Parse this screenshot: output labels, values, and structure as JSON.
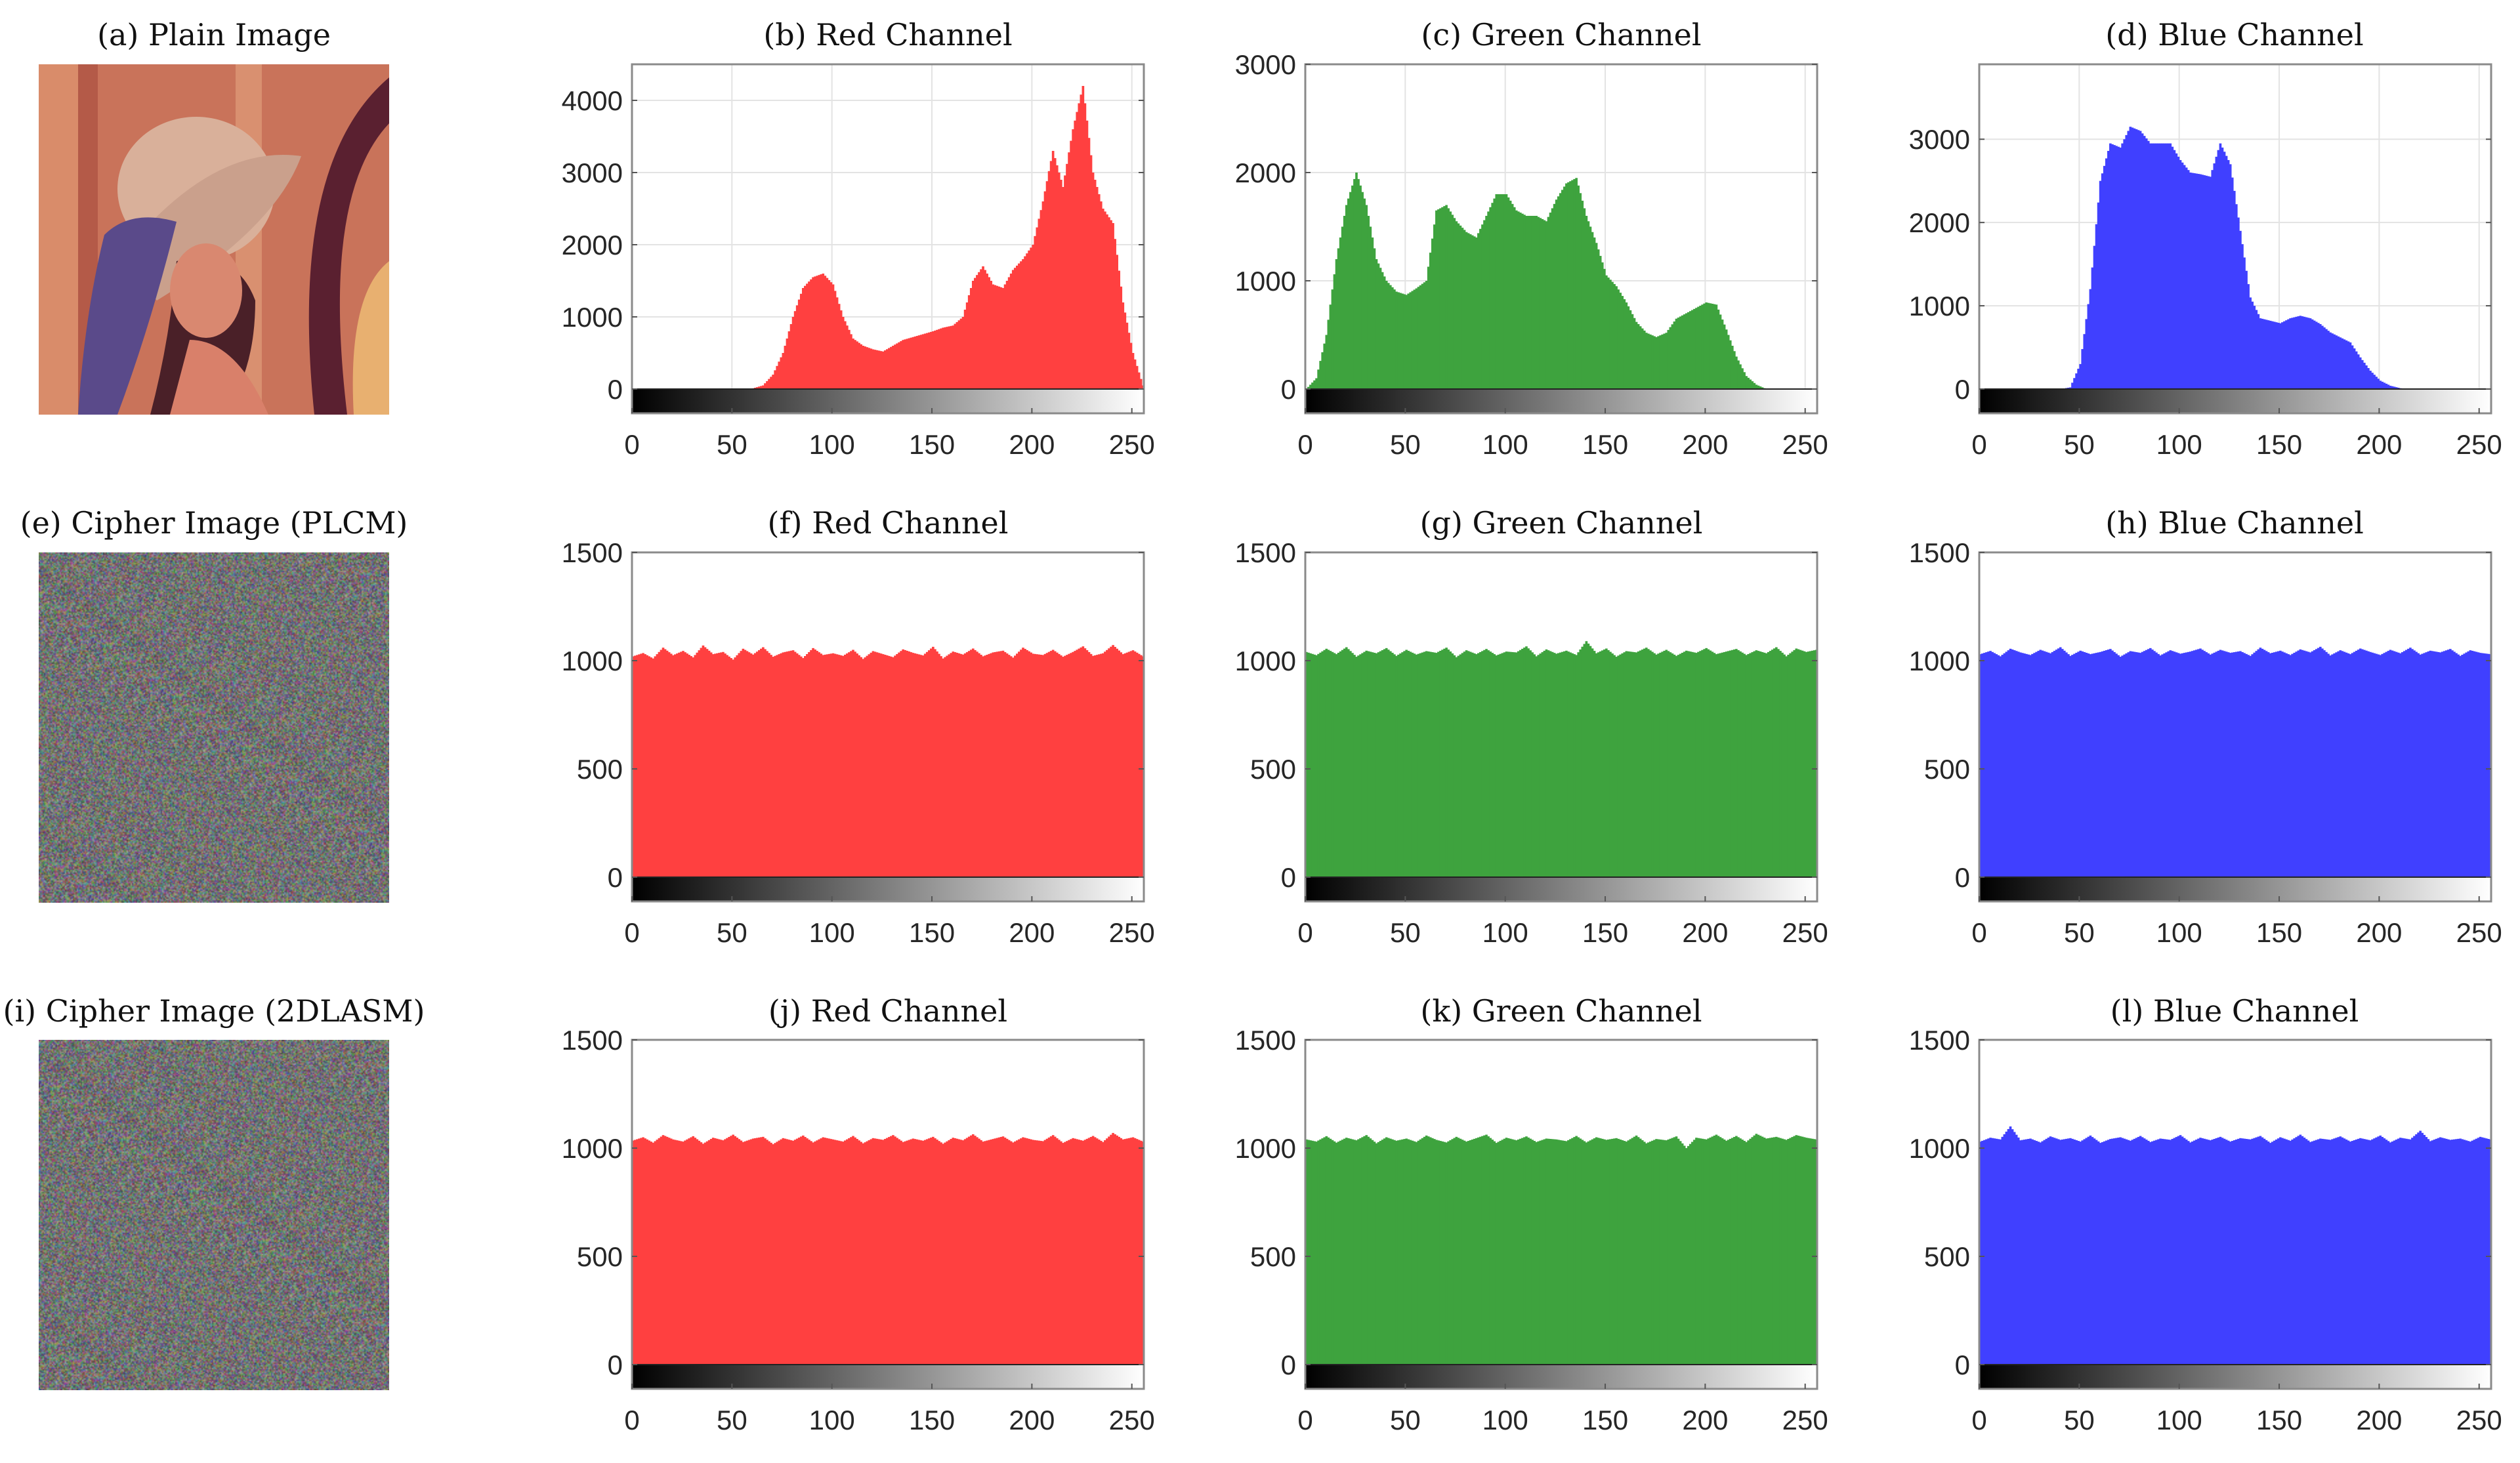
{
  "images": [
    {
      "title": "(a) Plain Image",
      "kind": "plain"
    },
    {
      "title": "(e) Cipher Image (PLCM)",
      "kind": "cipher"
    },
    {
      "title": "(i) Cipher Image (2DLASM)",
      "kind": "cipher"
    }
  ],
  "histogram_bins": [
    0,
    5,
    10,
    15,
    20,
    25,
    30,
    35,
    40,
    45,
    50,
    55,
    60,
    65,
    70,
    75,
    80,
    85,
    90,
    95,
    100,
    105,
    110,
    115,
    120,
    125,
    130,
    135,
    140,
    145,
    150,
    155,
    160,
    165,
    170,
    175,
    180,
    185,
    190,
    195,
    200,
    205,
    210,
    215,
    220,
    225,
    230,
    235,
    240,
    245,
    250,
    255
  ],
  "chart_data": [
    {
      "type": "bar",
      "title": "(b) Red Channel",
      "color": "#ff4040",
      "xlim": [
        0,
        256
      ],
      "xticks": [
        0,
        50,
        100,
        150,
        200,
        250
      ],
      "ylim": [
        0,
        4500
      ],
      "yticks": [
        0,
        1000,
        2000,
        3000,
        4000
      ],
      "grid": true,
      "values": [
        0,
        0,
        0,
        0,
        0,
        0,
        0,
        0,
        0,
        0,
        0,
        0,
        10,
        50,
        200,
        500,
        1000,
        1400,
        1550,
        1600,
        1450,
        1000,
        700,
        600,
        550,
        520,
        600,
        680,
        720,
        760,
        800,
        850,
        880,
        1000,
        1500,
        1700,
        1450,
        1400,
        1650,
        1800,
        2000,
        2600,
        3300,
        2800,
        3600,
        4200,
        3000,
        2500,
        2300,
        1200,
        500,
        50
      ]
    },
    {
      "type": "bar",
      "title": "(c) Green Channel",
      "color": "#3ea33e",
      "xlim": [
        0,
        256
      ],
      "xticks": [
        0,
        50,
        100,
        150,
        200,
        250
      ],
      "ylim": [
        0,
        3000
      ],
      "yticks": [
        0,
        1000,
        2000,
        3000
      ],
      "grid": true,
      "values": [
        0,
        100,
        500,
        1200,
        1700,
        2000,
        1700,
        1200,
        1000,
        900,
        870,
        930,
        1000,
        1650,
        1700,
        1550,
        1450,
        1400,
        1600,
        1800,
        1800,
        1650,
        1600,
        1600,
        1550,
        1750,
        1900,
        1950,
        1600,
        1350,
        1050,
        950,
        800,
        620,
        520,
        480,
        520,
        650,
        700,
        750,
        800,
        780,
        550,
        300,
        120,
        40,
        0,
        0,
        0,
        0,
        0,
        0
      ]
    },
    {
      "type": "bar",
      "title": "(d) Blue Channel",
      "color": "#4040ff",
      "xlim": [
        0,
        256
      ],
      "xticks": [
        0,
        50,
        100,
        150,
        200,
        250
      ],
      "ylim": [
        0,
        3900
      ],
      "yticks": [
        0,
        1000,
        2000,
        3000
      ],
      "grid": true,
      "values": [
        0,
        0,
        0,
        0,
        0,
        0,
        0,
        0,
        0,
        20,
        300,
        1200,
        2500,
        2950,
        2900,
        3150,
        3100,
        2950,
        2950,
        2950,
        2750,
        2600,
        2580,
        2550,
        2950,
        2700,
        1900,
        1100,
        850,
        820,
        790,
        850,
        880,
        850,
        780,
        680,
        620,
        560,
        380,
        220,
        100,
        40,
        10,
        0,
        0,
        0,
        0,
        0,
        0,
        0,
        0,
        0
      ]
    },
    {
      "type": "bar",
      "title": "(f) Red Channel",
      "color": "#ff4040",
      "xlim": [
        0,
        256
      ],
      "xticks": [
        0,
        50,
        100,
        150,
        200,
        250
      ],
      "ylim": [
        0,
        1500
      ],
      "yticks": [
        0,
        500,
        1000,
        1500
      ],
      "grid": false,
      "values": [
        1020,
        1035,
        1010,
        1060,
        1025,
        1045,
        1015,
        1070,
        1030,
        1040,
        1005,
        1055,
        1028,
        1062,
        1018,
        1038,
        1048,
        1012,
        1058,
        1026,
        1034,
        1022,
        1050,
        1008,
        1044,
        1030,
        1016,
        1052,
        1036,
        1024,
        1064,
        1010,
        1042,
        1028,
        1056,
        1020,
        1038,
        1046,
        1014,
        1060,
        1032,
        1026,
        1050,
        1018,
        1040,
        1066,
        1022,
        1034,
        1072,
        1030,
        1048,
        1020
      ]
    },
    {
      "type": "bar",
      "title": "(g) Green Channel",
      "color": "#3ea33e",
      "xlim": [
        0,
        256
      ],
      "xticks": [
        0,
        50,
        100,
        150,
        200,
        250
      ],
      "ylim": [
        0,
        1500
      ],
      "yticks": [
        0,
        500,
        1000,
        1500
      ],
      "grid": false,
      "values": [
        1040,
        1025,
        1055,
        1030,
        1062,
        1018,
        1046,
        1034,
        1058,
        1022,
        1050,
        1028,
        1044,
        1036,
        1060,
        1016,
        1048,
        1030,
        1054,
        1024,
        1042,
        1038,
        1066,
        1020,
        1052,
        1032,
        1046,
        1026,
        1090,
        1034,
        1056,
        1018,
        1044,
        1038,
        1060,
        1028,
        1050,
        1022,
        1046,
        1036,
        1058,
        1030,
        1042,
        1054,
        1026,
        1048,
        1034,
        1062,
        1020,
        1056,
        1040,
        1050
      ]
    },
    {
      "type": "bar",
      "title": "(h) Blue Channel",
      "color": "#4040ff",
      "xlim": [
        0,
        256
      ],
      "xticks": [
        0,
        50,
        100,
        150,
        200,
        250
      ],
      "ylim": [
        0,
        1500
      ],
      "yticks": [
        0,
        500,
        1000,
        1500
      ],
      "grid": false,
      "values": [
        1030,
        1045,
        1020,
        1055,
        1038,
        1026,
        1050,
        1034,
        1062,
        1022,
        1046,
        1030,
        1040,
        1054,
        1018,
        1044,
        1036,
        1058,
        1024,
        1048,
        1032,
        1042,
        1056,
        1028,
        1050,
        1036,
        1044,
        1022,
        1060,
        1034,
        1046,
        1026,
        1052,
        1038,
        1064,
        1024,
        1048,
        1030,
        1056,
        1040,
        1026,
        1050,
        1034,
        1060,
        1028,
        1046,
        1038,
        1054,
        1022,
        1048,
        1036,
        1030
      ]
    },
    {
      "type": "bar",
      "title": "(j) Red Channel",
      "color": "#ff4040",
      "xlim": [
        0,
        256
      ],
      "xticks": [
        0,
        50,
        100,
        150,
        200,
        250
      ],
      "ylim": [
        0,
        1500
      ],
      "yticks": [
        0,
        500,
        1000,
        1500
      ],
      "grid": false,
      "values": [
        1035,
        1050,
        1025,
        1060,
        1040,
        1030,
        1055,
        1020,
        1048,
        1036,
        1062,
        1028,
        1044,
        1052,
        1018,
        1046,
        1034,
        1058,
        1026,
        1050,
        1040,
        1030,
        1056,
        1022,
        1046,
        1038,
        1060,
        1028,
        1044,
        1034,
        1052,
        1020,
        1048,
        1036,
        1064,
        1030,
        1042,
        1054,
        1026,
        1050,
        1038,
        1032,
        1060,
        1024,
        1046,
        1034,
        1056,
        1028,
        1070,
        1040,
        1050,
        1030
      ]
    },
    {
      "type": "bar",
      "title": "(k) Green Channel",
      "color": "#3ea33e",
      "xlim": [
        0,
        256
      ],
      "xticks": [
        0,
        50,
        100,
        150,
        200,
        250
      ],
      "ylim": [
        0,
        1500
      ],
      "yticks": [
        0,
        500,
        1000,
        1500
      ],
      "grid": false,
      "values": [
        1040,
        1030,
        1055,
        1025,
        1048,
        1036,
        1060,
        1022,
        1050,
        1034,
        1044,
        1028,
        1058,
        1038,
        1026,
        1052,
        1030,
        1046,
        1062,
        1024,
        1048,
        1036,
        1054,
        1028,
        1044,
        1040,
        1032,
        1056,
        1026,
        1050,
        1038,
        1046,
        1030,
        1058,
        1022,
        1042,
        1036,
        1054,
        1000,
        1048,
        1040,
        1062,
        1034,
        1056,
        1028,
        1066,
        1044,
        1052,
        1038,
        1060,
        1048,
        1040
      ]
    },
    {
      "type": "bar",
      "title": "(l) Blue Channel",
      "color": "#4040ff",
      "xlim": [
        0,
        256
      ],
      "xticks": [
        0,
        50,
        100,
        150,
        200,
        250
      ],
      "ylim": [
        0,
        1500
      ],
      "yticks": [
        0,
        500,
        1000,
        1500
      ],
      "grid": false,
      "values": [
        1030,
        1048,
        1040,
        1100,
        1036,
        1044,
        1026,
        1054,
        1038,
        1046,
        1030,
        1058,
        1024,
        1042,
        1050,
        1034,
        1056,
        1028,
        1044,
        1038,
        1060,
        1026,
        1048,
        1036,
        1052,
        1030,
        1046,
        1040,
        1056,
        1024,
        1050,
        1034,
        1062,
        1028,
        1044,
        1038,
        1054,
        1030,
        1046,
        1036,
        1058,
        1026,
        1048,
        1040,
        1080,
        1032,
        1050,
        1038,
        1044,
        1030,
        1052,
        1040
      ]
    }
  ]
}
